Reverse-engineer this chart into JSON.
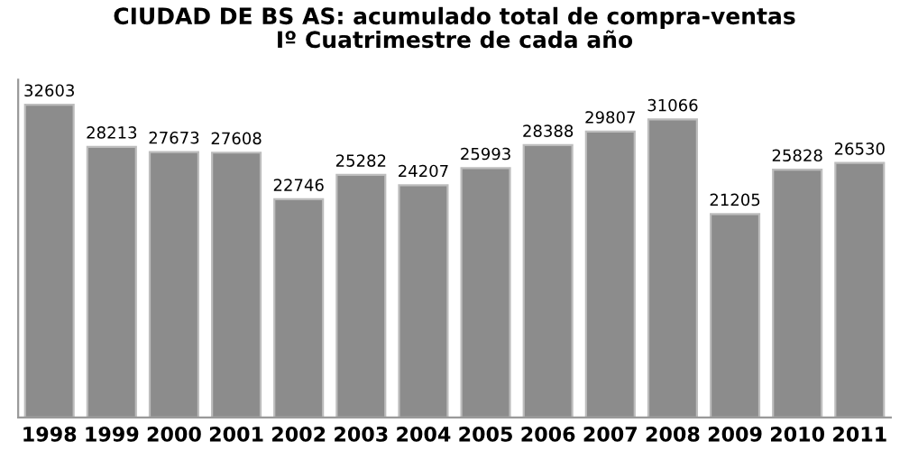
{
  "chart_data": {
    "type": "bar",
    "title": "CIUDAD DE BS AS: acumulado total de compra-ventas\nIº Cuatrimestre de cada año",
    "categories": [
      "1998",
      "1999",
      "2000",
      "2001",
      "2002",
      "2003",
      "2004",
      "2005",
      "2006",
      "2007",
      "2008",
      "2009",
      "2010",
      "2011"
    ],
    "values": [
      32603,
      28213,
      27673,
      27608,
      22746,
      25282,
      24207,
      25993,
      28388,
      29807,
      31066,
      21205,
      25828,
      26530
    ],
    "color": "#8c8c8c",
    "data_labels": true,
    "tick_labels": "x",
    "grid": false,
    "legend": false
  }
}
